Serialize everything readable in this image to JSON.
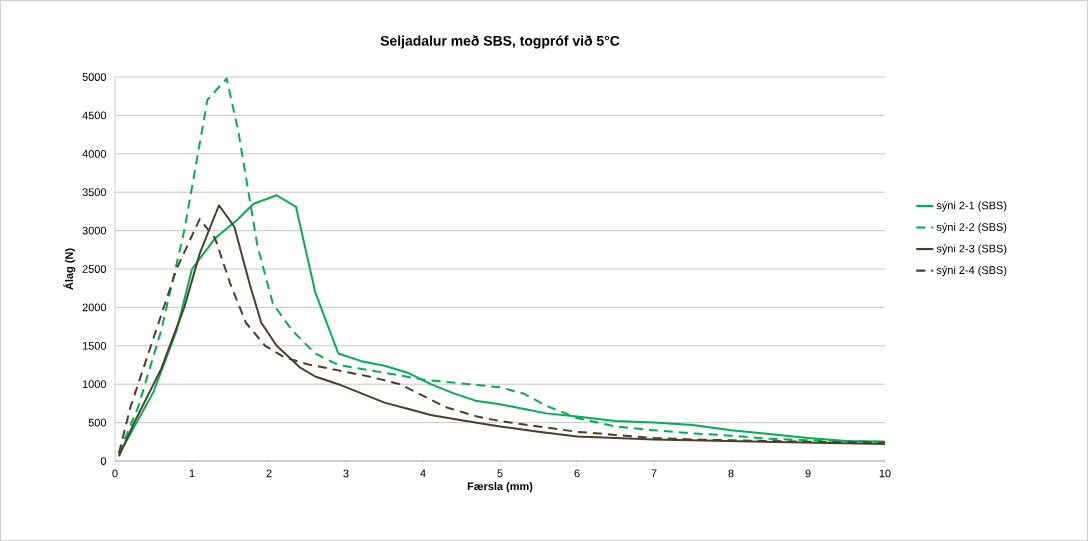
{
  "chart_data": {
    "type": "line",
    "title": "Seljadalur með SBS, togpróf við 5°C",
    "xlabel": "Færsla (mm)",
    "ylabel": "Álag (N)",
    "xlim": [
      0,
      10
    ],
    "xticks": [
      0,
      1,
      2,
      3,
      4,
      5,
      6,
      7,
      8,
      9,
      10
    ],
    "ylim": [
      0,
      5000
    ],
    "yticks": [
      0,
      500,
      1000,
      1500,
      2000,
      2500,
      3000,
      3500,
      4000,
      4500,
      5000
    ],
    "grid": "y",
    "legend": "right",
    "marker": "none",
    "series": [
      {
        "name": "sýni 2-1 (SBS)",
        "color": "#00b050",
        "line_style": "solid",
        "x": [
          0.05,
          0.5,
          0.8,
          1,
          1.3,
          1.6,
          1.8,
          2.1,
          2.35,
          2.6,
          2.9,
          3.2,
          3.5,
          3.8,
          4.1,
          4.4,
          4.7,
          5.0,
          5.3,
          5.6,
          6.0,
          6.5,
          7.0,
          7.5,
          8.0,
          8.5,
          9.0,
          9.5,
          10
        ],
        "values": [
          80,
          900,
          1700,
          2500,
          2900,
          3150,
          3350,
          3460,
          3310,
          2200,
          1400,
          1300,
          1240,
          1150,
          1000,
          880,
          780,
          740,
          680,
          620,
          580,
          520,
          500,
          470,
          400,
          350,
          300,
          260,
          250
        ]
      },
      {
        "name": "sýni 2-2 (SBS)",
        "color": "#00b050",
        "line_style": "dashed",
        "x": [
          0.05,
          0.3,
          0.6,
          0.9,
          1.2,
          1.45,
          1.6,
          1.85,
          2.05,
          2.3,
          2.6,
          2.9,
          3.5,
          4.0,
          4.5,
          5.0,
          5.3,
          5.6,
          6.0,
          6.5,
          7.0,
          7.5,
          8.0,
          8.5,
          9.0,
          9.5,
          10
        ],
        "values": [
          100,
          700,
          1700,
          3000,
          4700,
          4980,
          4300,
          2800,
          2050,
          1700,
          1400,
          1250,
          1150,
          1060,
          1010,
          960,
          880,
          720,
          560,
          450,
          400,
          360,
          330,
          290,
          270,
          260,
          250
        ]
      },
      {
        "name": "sýni 2-3 (SBS)",
        "color": "#4a3f2b",
        "line_style": "solid",
        "x": [
          0.05,
          0.25,
          0.6,
          0.9,
          1.1,
          1.35,
          1.55,
          1.75,
          1.9,
          2.1,
          2.4,
          2.6,
          2.9,
          3.2,
          3.5,
          3.8,
          4.1,
          4.5,
          5.0,
          5.5,
          6.0,
          6.5,
          7.0,
          8.0,
          9.0,
          10
        ],
        "values": [
          60,
          500,
          1200,
          2000,
          2700,
          3330,
          3050,
          2300,
          1800,
          1500,
          1220,
          1100,
          1000,
          880,
          760,
          680,
          600,
          530,
          450,
          380,
          320,
          300,
          280,
          260,
          240,
          220
        ]
      },
      {
        "name": "sýni 2-4 (SBS)",
        "color": "#4a3f2b",
        "line_style": "dashed",
        "x": [
          0.05,
          0.2,
          0.5,
          0.8,
          1.1,
          1.3,
          1.5,
          1.7,
          1.95,
          2.2,
          2.5,
          2.9,
          3.3,
          3.7,
          4.0,
          4.3,
          4.7,
          5.0,
          5.5,
          6.0,
          6.5,
          7.0,
          7.5,
          8.0,
          9.0,
          10
        ],
        "values": [
          100,
          700,
          1600,
          2500,
          3150,
          2900,
          2300,
          1800,
          1500,
          1350,
          1260,
          1180,
          1100,
          1000,
          850,
          700,
          580,
          520,
          450,
          380,
          340,
          300,
          280,
          270,
          250,
          240
        ]
      }
    ]
  }
}
